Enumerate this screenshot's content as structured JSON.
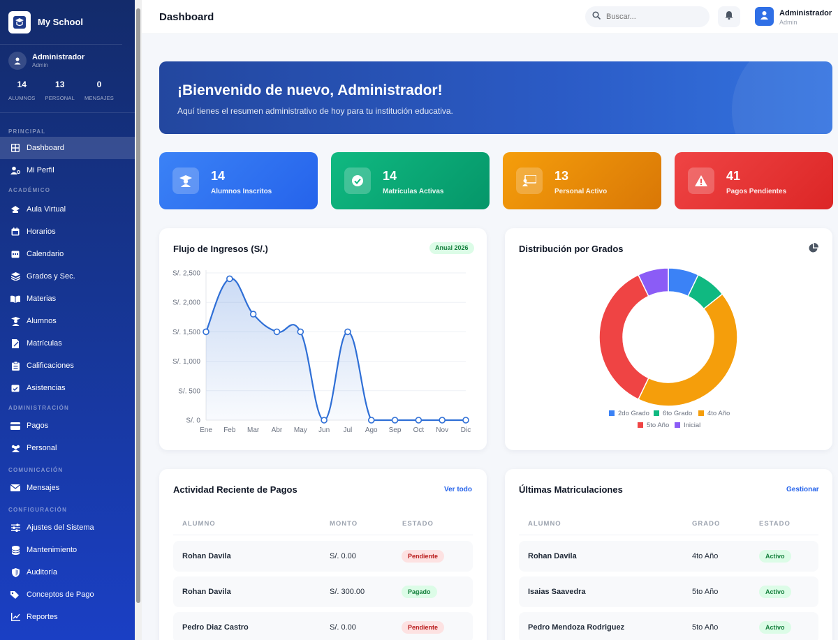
{
  "sidebar": {
    "brand": "My School",
    "user": {
      "name": "Administrador",
      "role": "Admin"
    },
    "stats": [
      {
        "value": "14",
        "label": "ALUMNOS"
      },
      {
        "value": "13",
        "label": "PERSONAL"
      },
      {
        "value": "0",
        "label": "MENSAJES"
      }
    ],
    "sections": {
      "principal": "PRINCIPAL",
      "academico": "ACADÉMICO",
      "administracion": "ADMINISTRACIÓN",
      "comunicacion": "COMUNICACIÓN",
      "configuracion": "CONFIGURACIÓN"
    },
    "items": {
      "dashboard": "Dashboard",
      "perfil": "Mi Perfil",
      "aula": "Aula Virtual",
      "horarios": "Horarios",
      "calendario": "Calendario",
      "grados": "Grados y Sec.",
      "materias": "Materias",
      "alumnos": "Alumnos",
      "matriculas": "Matrículas",
      "calificaciones": "Calificaciones",
      "asistencias": "Asistencias",
      "pagos": "Pagos",
      "personal": "Personal",
      "mensajes": "Mensajes",
      "ajustes": "Ajustes del Sistema",
      "mantenimiento": "Mantenimiento",
      "auditoria": "Auditoría",
      "conceptos": "Conceptos de Pago",
      "reportes": "Reportes"
    }
  },
  "header": {
    "title": "Dashboard",
    "search_placeholder": "Buscar...",
    "user_name": "Administrador",
    "user_role": "Admin"
  },
  "banner": {
    "title": "¡Bienvenido de nuevo, Administrador!",
    "subtitle": "Aquí tienes el resumen administrativo de hoy para tu institución educativa."
  },
  "stat_cards": [
    {
      "value": "14",
      "label": "Alumnos Inscritos",
      "color": "#3b82f6"
    },
    {
      "value": "14",
      "label": "Matrículas Activas",
      "color": "#10b981"
    },
    {
      "value": "13",
      "label": "Personal Activo",
      "color": "#f59e0b"
    },
    {
      "value": "41",
      "label": "Pagos Pendientes",
      "color": "#ef4444"
    }
  ],
  "income_panel": {
    "title": "Flujo de Ingresos (S/.)",
    "badge": "Anual 2026"
  },
  "grades_panel": {
    "title": "Distribución por Grados"
  },
  "payments": {
    "title": "Actividad Reciente de Pagos",
    "link": "Ver todo",
    "headers": [
      "ALUMNO",
      "MONTO",
      "ESTADO"
    ],
    "rows": [
      {
        "alumno": "Rohan Davila",
        "monto": "S/. 0.00",
        "estado": "Pendiente"
      },
      {
        "alumno": "Rohan Davila",
        "monto": "S/. 300.00",
        "estado": "Pagado"
      },
      {
        "alumno": "Pedro Diaz Castro",
        "monto": "S/. 0.00",
        "estado": "Pendiente"
      }
    ]
  },
  "enrollments": {
    "title": "Últimas Matriculaciones",
    "link": "Gestionar",
    "headers": [
      "ALUMNO",
      "GRADO",
      "ESTADO"
    ],
    "rows": [
      {
        "alumno": "Rohan Davila",
        "grado": "4to Año",
        "estado": "Activo"
      },
      {
        "alumno": "Isaias Saavedra",
        "grado": "5to Año",
        "estado": "Activo"
      },
      {
        "alumno": "Pedro Mendoza Rodriguez",
        "grado": "5to Año",
        "estado": "Activo"
      }
    ]
  },
  "chart_data": [
    {
      "type": "area",
      "title": "Flujo de Ingresos (S/.)",
      "categories": [
        "Ene",
        "Feb",
        "Mar",
        "Abr",
        "May",
        "Jun",
        "Jul",
        "Ago",
        "Sep",
        "Oct",
        "Nov",
        "Dic"
      ],
      "values": [
        1500,
        2400,
        1800,
        1500,
        1500,
        0,
        1500,
        0,
        0,
        0,
        0,
        0
      ],
      "yticks": [
        "S/. 0",
        "S/. 500",
        "S/. 1,000",
        "S/. 1,500",
        "S/. 2,000",
        "S/. 2,500"
      ],
      "ylim": [
        0,
        2500
      ],
      "color": "#2f6fd6",
      "grid": true
    },
    {
      "type": "pie",
      "title": "Distribución por Grados",
      "labels": [
        "2do Grado",
        "6to Grado",
        "4to Año",
        "5to Año",
        "Inicial"
      ],
      "values": [
        1,
        1,
        6,
        5,
        1
      ],
      "colors": [
        "#3b82f6",
        "#10b981",
        "#f59e0b",
        "#ef4444",
        "#8b5cf6"
      ],
      "legend": "bottom"
    }
  ]
}
